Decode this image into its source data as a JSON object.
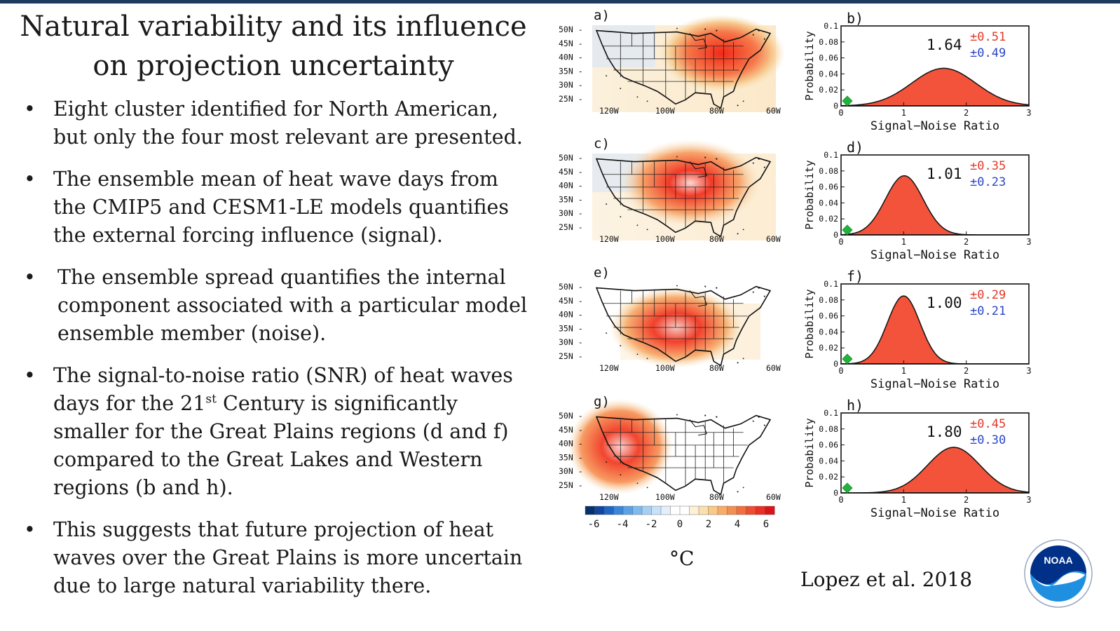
{
  "title_line1": "Natural variability and its influence",
  "title_line2": "on projection uncertainty",
  "bullets": {
    "b1": "Eight cluster identified for North American, but only the four most relevant are presented.",
    "b2": "The ensemble mean of heat wave days from the CMIP5 and CESM1-LE models quantifies the external forcing influence (signal).",
    "b3": "The ensemble spread quantifies the internal component associated with a particular model ensemble member (noise).",
    "b4_pre": "The signal-to-noise ratio (SNR) of heat waves days for the 21",
    "b4_sup": "st",
    "b4_post": " Century is significantly smaller for the Great Plains regions (d and f) compared to the Great Lakes and Western regions (b and h).",
    "b5": "This suggests that future projection of heat waves over the Great Plains is more uncertain due to large natural variability there."
  },
  "maps": {
    "lat_labels": [
      "50N",
      "45N",
      "40N",
      "35N",
      "30N",
      "25N"
    ],
    "lon_labels": [
      "120W",
      "100W",
      "80W",
      "60W"
    ],
    "panels": [
      "a)",
      "c)",
      "e)",
      "g)"
    ],
    "colorbar_ticks": [
      "-6",
      "-4",
      "-2",
      "0",
      "2",
      "4",
      "6"
    ],
    "unit": "°C"
  },
  "chart_data": [
    {
      "type": "area",
      "panel": "b)",
      "xlabel": "Signal−Noise Ratio",
      "ylabel": "Probability",
      "xlim": [
        0,
        3
      ],
      "ylim": [
        0,
        0.1
      ],
      "x_ticks": [
        "0",
        "1",
        "2",
        "3"
      ],
      "y_ticks": [
        "0",
        "0.02",
        "0.04",
        "0.06",
        "0.08",
        "0.1"
      ],
      "mean": 1.64,
      "sd": 0.51,
      "snr_label": "1.64",
      "pm_red": "±0.51",
      "pm_blue": "±0.49",
      "peak": 0.047,
      "marker_x": 0.1,
      "fill": "#f2533a"
    },
    {
      "type": "area",
      "panel": "d)",
      "xlabel": "Signal−Noise Ratio",
      "ylabel": "Probability",
      "xlim": [
        0,
        3
      ],
      "ylim": [
        0,
        0.1
      ],
      "x_ticks": [
        "0",
        "1",
        "2",
        "3"
      ],
      "y_ticks": [
        "0",
        "0.02",
        "0.04",
        "0.06",
        "0.08",
        "0.1"
      ],
      "mean": 1.01,
      "sd": 0.3,
      "snr_label": "1.01",
      "pm_red": "±0.35",
      "pm_blue": "±0.23",
      "peak": 0.074,
      "marker_x": 0.1,
      "fill": "#f2533a"
    },
    {
      "type": "area",
      "panel": "f)",
      "xlabel": "Signal−Noise Ratio",
      "ylabel": "Probability",
      "xlim": [
        0,
        3
      ],
      "ylim": [
        0,
        0.1
      ],
      "x_ticks": [
        "0",
        "1",
        "2",
        "3"
      ],
      "y_ticks": [
        "0",
        "0.02",
        "0.04",
        "0.06",
        "0.08",
        "0.1"
      ],
      "mean": 1.0,
      "sd": 0.26,
      "snr_label": "1.00",
      "pm_red": "±0.29",
      "pm_blue": "±0.21",
      "peak": 0.085,
      "marker_x": 0.1,
      "fill": "#f2533a"
    },
    {
      "type": "area",
      "panel": "h)",
      "xlabel": "Signal−Noise Ratio",
      "ylabel": "Probability",
      "xlim": [
        0,
        3
      ],
      "ylim": [
        0,
        0.1
      ],
      "x_ticks": [
        "0",
        "1",
        "2",
        "3"
      ],
      "y_ticks": [
        "0",
        "0.02",
        "0.04",
        "0.06",
        "0.08",
        "0.1"
      ],
      "mean": 1.8,
      "sd": 0.42,
      "snr_label": "1.80",
      "pm_red": "±0.45",
      "pm_blue": "±0.30",
      "peak": 0.057,
      "marker_x": 0.1,
      "fill": "#f2533a"
    }
  ],
  "citation": "Lopez et al. 2018",
  "logo": {
    "text": "NOAA",
    "colors": {
      "navy": "#003087",
      "blue": "#1f8fe0",
      "white": "#ffffff"
    }
  }
}
